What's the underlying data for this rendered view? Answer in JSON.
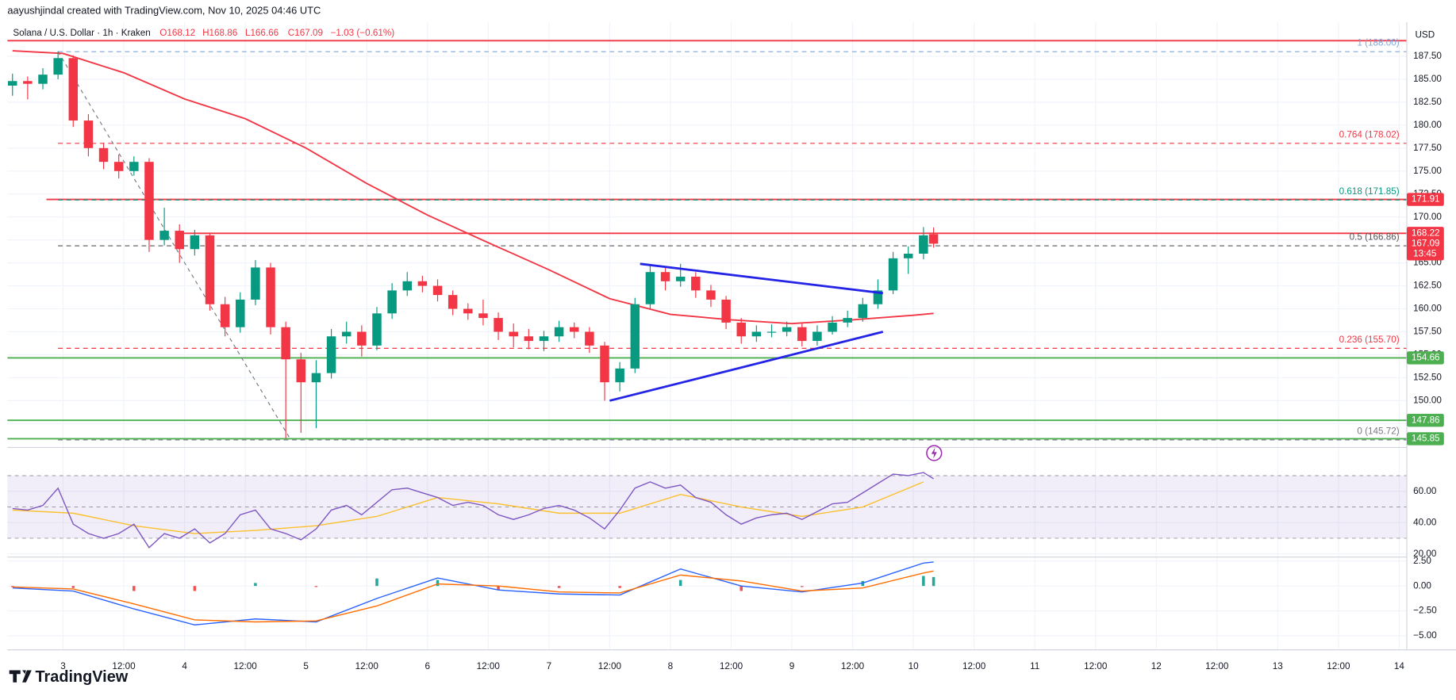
{
  "header": {
    "author": "aayushjindal created with TradingView.com, Nov 10, 2025 04:46 UTC",
    "symbol": "Solana / U.S. Dollar · 1h · Kraken",
    "ohlc": [
      "O168.12",
      "H168.86",
      "L166.66",
      "C167.09"
    ],
    "change": "−1.03 (−0.61%)",
    "currency": "USD",
    "countdown": "13:45"
  },
  "footer": {
    "brand": "TradingView"
  },
  "chart_data": {
    "type": "candlestick",
    "x": [
      -10,
      -7,
      -4,
      -1,
      2,
      5,
      8,
      11,
      14,
      17,
      20,
      23,
      26,
      29,
      32,
      35,
      38,
      41,
      44,
      47,
      50,
      53,
      56,
      59,
      62,
      65,
      68,
      71,
      74,
      77,
      80,
      83,
      86,
      89,
      92,
      95,
      98,
      101,
      104,
      107,
      110,
      113,
      116,
      119,
      122,
      125,
      128,
      131,
      134,
      137,
      140,
      143,
      146,
      149,
      152,
      155,
      158,
      161,
      164,
      167,
      170,
      172
    ],
    "open": [
      184.3,
      184.8,
      184.5,
      185.5,
      187.3,
      180.5,
      177.5,
      176.0,
      175.0,
      176.0,
      167.5,
      168.5,
      166.5,
      168.0,
      160.5,
      158.0,
      161.0,
      164.5,
      158.0,
      154.5,
      152.0,
      153.0,
      157.0,
      157.5,
      156.0,
      159.5,
      162.0,
      163.0,
      162.5,
      161.5,
      160.0,
      159.5,
      159.0,
      157.5,
      157.0,
      156.5,
      157.0,
      158.0,
      157.5,
      156.0,
      152.0,
      153.5,
      160.5,
      164.0,
      163.0,
      163.5,
      162.0,
      161.0,
      158.5,
      157.0,
      157.5,
      157.5,
      158.0,
      156.5,
      157.5,
      158.5,
      159.0,
      160.5,
      162.0,
      165.5,
      166.0,
      168.12
    ],
    "high": [
      185.6,
      185.3,
      186.2,
      188.0,
      187.6,
      181.2,
      178.1,
      176.8,
      176.6,
      176.4,
      171.0,
      169.2,
      168.6,
      168.3,
      161.3,
      161.8,
      165.3,
      165.0,
      158.6,
      155.2,
      154.4,
      157.8,
      158.6,
      158.2,
      160.2,
      162.8,
      164.0,
      163.6,
      163.2,
      162.0,
      160.6,
      161.0,
      159.6,
      158.4,
      157.8,
      157.6,
      158.7,
      158.5,
      158.0,
      156.4,
      154.2,
      161.2,
      164.8,
      164.6,
      164.9,
      164.0,
      162.6,
      161.4,
      159.0,
      158.2,
      158.3,
      158.6,
      158.4,
      158.2,
      159.2,
      159.8,
      161.2,
      163.2,
      166.2,
      166.8,
      168.9,
      168.86
    ],
    "low": [
      183.2,
      182.8,
      183.9,
      185.0,
      179.8,
      176.6,
      175.2,
      174.2,
      174.5,
      166.2,
      166.9,
      165.0,
      165.8,
      159.8,
      157.0,
      157.4,
      160.4,
      157.2,
      145.9,
      146.5,
      147.0,
      152.4,
      156.2,
      154.8,
      155.5,
      158.9,
      161.4,
      161.8,
      160.8,
      159.3,
      158.8,
      158.2,
      156.6,
      155.8,
      155.6,
      155.4,
      156.4,
      156.8,
      155.2,
      150.0,
      151.0,
      153.0,
      160.0,
      162.0,
      162.4,
      161.2,
      160.2,
      157.8,
      156.2,
      156.4,
      156.9,
      157.0,
      155.9,
      156.0,
      157.2,
      158.0,
      158.6,
      160.0,
      161.6,
      163.8,
      165.4,
      166.66
    ],
    "close": [
      184.8,
      184.5,
      185.5,
      187.3,
      180.5,
      177.5,
      176.0,
      175.0,
      176.0,
      167.5,
      168.5,
      166.5,
      168.0,
      160.5,
      158.0,
      161.0,
      164.5,
      158.0,
      154.5,
      152.0,
      153.0,
      157.0,
      157.5,
      156.0,
      159.5,
      162.0,
      163.0,
      162.5,
      161.5,
      160.0,
      159.5,
      159.0,
      157.5,
      157.0,
      156.5,
      157.0,
      158.0,
      157.5,
      156.0,
      152.0,
      153.5,
      160.5,
      164.0,
      163.0,
      163.5,
      162.0,
      161.0,
      158.5,
      157.0,
      157.5,
      157.5,
      158.0,
      156.5,
      157.5,
      158.5,
      159.0,
      160.5,
      162.0,
      165.5,
      166.0,
      168.0,
      167.09
    ],
    "up_color": "#089981",
    "down_color": "#f23645",
    "xlim": [
      -11,
      265.5
    ],
    "xticks": [
      {
        "value": 0,
        "label": "3"
      },
      {
        "value": 12,
        "label": "12:00"
      },
      {
        "value": 24,
        "label": "4"
      },
      {
        "value": 36,
        "label": "12:00"
      },
      {
        "value": 48,
        "label": "5"
      },
      {
        "value": 60,
        "label": "12:00"
      },
      {
        "value": 72,
        "label": "6"
      },
      {
        "value": 84,
        "label": "12:00"
      },
      {
        "value": 96,
        "label": "7"
      },
      {
        "value": 108,
        "label": "12:00"
      },
      {
        "value": 120,
        "label": "8"
      },
      {
        "value": 132,
        "label": "12:00"
      },
      {
        "value": 144,
        "label": "9"
      },
      {
        "value": 156,
        "label": "12:00"
      },
      {
        "value": 168,
        "label": "10"
      },
      {
        "value": 180,
        "label": "12:00"
      },
      {
        "value": 192,
        "label": "11"
      },
      {
        "value": 204,
        "label": "12:00"
      },
      {
        "value": 216,
        "label": "12"
      },
      {
        "value": 228,
        "label": "12:00"
      },
      {
        "value": 240,
        "label": "13"
      },
      {
        "value": 252,
        "label": "12:00"
      },
      {
        "value": 264,
        "label": "14"
      }
    ],
    "ylim": [
      144.9,
      191.2
    ],
    "yticks": [
      {
        "value": 147.5,
        "label": "147.50"
      },
      {
        "value": 150,
        "label": "150.00"
      },
      {
        "value": 152.5,
        "label": "152.50"
      },
      {
        "value": 155,
        "label": "155.00"
      },
      {
        "value": 157.5,
        "label": "157.50"
      },
      {
        "value": 160,
        "label": "160.00"
      },
      {
        "value": 162.5,
        "label": "162.50"
      },
      {
        "value": 165,
        "label": "165.00"
      },
      {
        "value": 167.5,
        "label": "167.50"
      },
      {
        "value": 170,
        "label": "170.00"
      },
      {
        "value": 172.5,
        "label": "172.50"
      },
      {
        "value": 175,
        "label": "175.00"
      },
      {
        "value": 177.5,
        "label": "177.50"
      },
      {
        "value": 180,
        "label": "180.00"
      },
      {
        "value": 182.5,
        "label": "182.50"
      },
      {
        "value": 185,
        "label": "185.00"
      },
      {
        "value": 187.5,
        "label": "187.50"
      }
    ],
    "grid": true,
    "ma": {
      "color": "#f23645",
      "x": [
        -10,
        0,
        12,
        24,
        36,
        48,
        60,
        72,
        84,
        96,
        108,
        120,
        132,
        144,
        156,
        168,
        172
      ],
      "values": [
        188.1,
        187.8,
        185.7,
        182.85,
        180.7,
        177.5,
        173.65,
        170.2,
        167.2,
        164.25,
        161.1,
        159.4,
        158.8,
        158.4,
        158.8,
        159.3,
        159.5
      ]
    },
    "levels": [
      {
        "value": 189.2,
        "color": "#f23645"
      },
      {
        "value": 171.91,
        "label": "171.91",
        "color": "#f23645"
      },
      {
        "value": 168.22,
        "label": "168.22",
        "color": "#f23645"
      },
      {
        "value": 154.66,
        "label": "154.66",
        "color": "#4caf50"
      },
      {
        "value": 147.86,
        "label": "147.86",
        "color": "#4caf50"
      },
      {
        "value": 145.85,
        "label": "145.85",
        "color": "#4caf50"
      }
    ],
    "last_price": {
      "value": 167.09,
      "label": "167.09",
      "color": "#f23645"
    },
    "fib_x": [
      -1,
      45
    ],
    "fib": [
      {
        "value": 188.0,
        "label": "1 (188.00)",
        "color": "#7fa7d9"
      },
      {
        "value": 178.02,
        "label": "0.764 (178.02)",
        "color": "#f23645"
      },
      {
        "value": 171.85,
        "label": "0.618 (171.85)",
        "color": "#089981"
      },
      {
        "value": 166.86,
        "label": "0.5 (166.86)",
        "color": "#555555"
      },
      {
        "value": 155.7,
        "label": "0.236 (155.70)",
        "color": "#f23645"
      },
      {
        "value": 145.72,
        "label": "0 (145.72)",
        "color": "#787b86"
      }
    ],
    "trendlines": {
      "color": "#2424e6",
      "lines": [
        {
          "x": [
            114,
            162
          ],
          "values": [
            164.9,
            161.7
          ]
        },
        {
          "x": [
            108,
            162
          ],
          "values": [
            150.0,
            157.5
          ]
        }
      ]
    },
    "rsi": {
      "color": "#7e57c2",
      "ylim": [
        18,
        88
      ],
      "yticks": [
        {
          "value": 20,
          "label": "20.00"
        },
        {
          "value": 40,
          "label": "40.00"
        },
        {
          "value": 60,
          "label": "60.00"
        }
      ],
      "band": [
        30,
        70
      ],
      "mid": 50,
      "values": [
        49,
        48,
        51,
        62,
        39,
        33,
        30,
        33,
        39,
        24,
        33,
        30,
        36,
        27,
        33,
        45,
        48,
        36,
        33,
        29,
        36,
        48,
        51,
        45,
        53,
        61,
        62,
        59,
        56,
        51,
        53,
        51,
        45,
        42,
        45,
        49,
        51,
        48,
        43,
        36,
        48,
        62,
        66,
        62,
        64,
        56,
        53,
        45,
        39,
        43,
        45,
        46,
        42,
        47,
        52,
        53,
        59,
        65,
        71,
        70,
        72,
        68
      ],
      "ma": {
        "color": "#fbc02d",
        "x": [
          -10,
          2,
          14,
          26,
          38,
          50,
          62,
          74,
          86,
          98,
          110,
          122,
          134,
          146,
          158,
          170
        ],
        "values": [
          48,
          46,
          38,
          33,
          35,
          38,
          44,
          56,
          52,
          46,
          46,
          58,
          50,
          44,
          50,
          66
        ]
      }
    },
    "macd": {
      "ylim": [
        -6.4,
        2.9
      ],
      "yticks": [
        {
          "value": 2.5,
          "label": "2.50"
        },
        {
          "value": 0,
          "label": "0.00"
        },
        {
          "value": -2.5,
          "label": "−2.50"
        },
        {
          "value": -5,
          "label": "−5.00"
        }
      ],
      "x": [
        -10,
        2,
        14,
        26,
        38,
        50,
        62,
        74,
        86,
        98,
        110,
        122,
        134,
        146,
        158,
        170,
        172
      ],
      "macd": [
        -0.2,
        -0.5,
        -2.3,
        -3.9,
        -3.3,
        -3.6,
        -1.25,
        0.8,
        -0.4,
        -0.8,
        -0.9,
        1.7,
        0,
        -0.6,
        0.3,
        2.3,
        2.4
      ],
      "signal": [
        -0.1,
        -0.3,
        -1.8,
        -3.4,
        -3.6,
        -3.5,
        -2.0,
        0.2,
        0.0,
        -0.6,
        -0.7,
        1.1,
        0.5,
        -0.5,
        -0.2,
        1.3,
        1.5
      ],
      "hist": [
        -0.1,
        -0.2,
        -0.5,
        -0.5,
        0.3,
        -0.1,
        0.75,
        0.6,
        -0.4,
        -0.2,
        -0.2,
        0.6,
        -0.5,
        -0.1,
        0.5,
        1.0,
        0.9
      ],
      "macd_color": "#2962ff",
      "signal_color": "#ff6d00",
      "hist_up_color": "#26a69a",
      "hist_down_color": "#ef5350"
    }
  }
}
